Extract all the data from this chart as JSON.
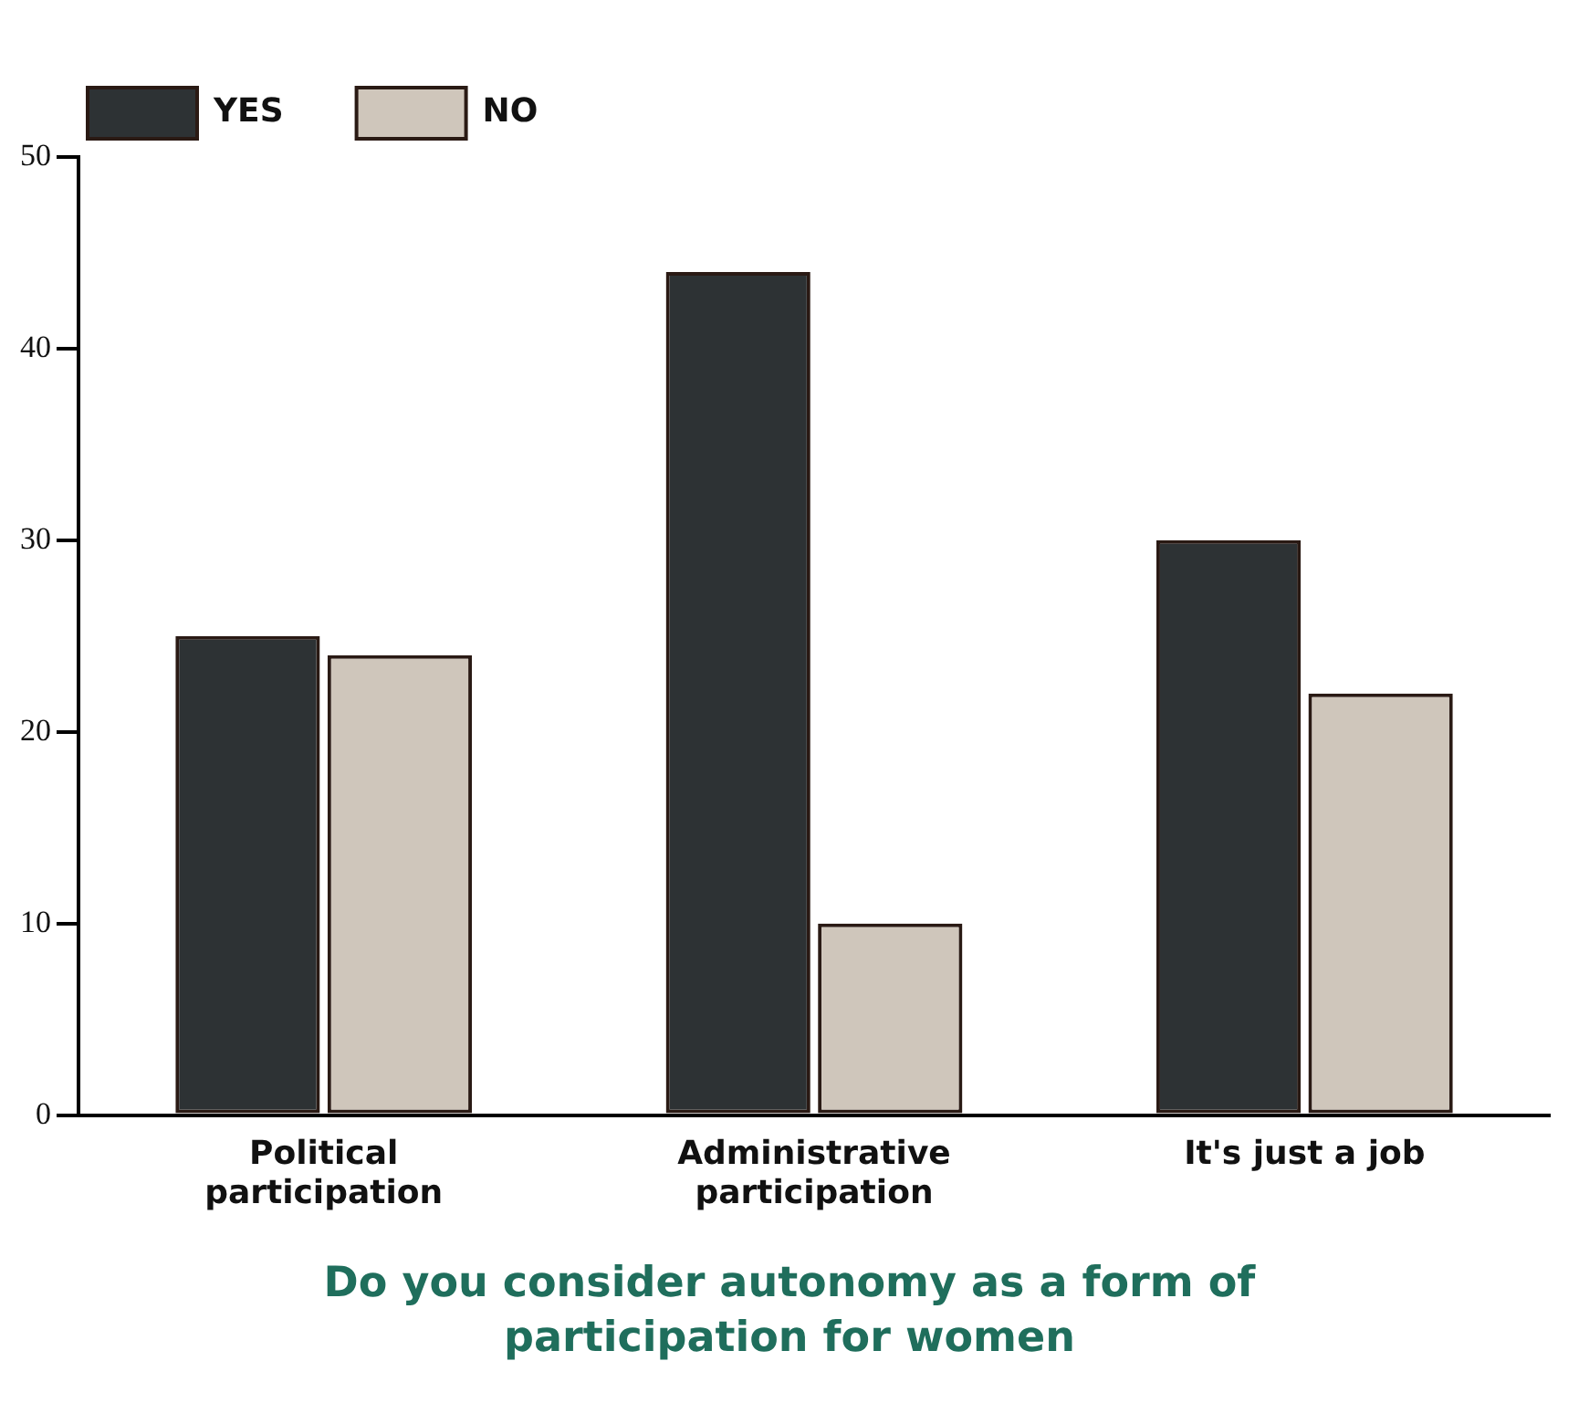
{
  "chart_data": {
    "type": "bar",
    "title": "Do you consider autonomy as a form of participation for women",
    "categories": [
      "Political participation",
      "Administrative participation",
      "It's just a job"
    ],
    "series": [
      {
        "name": "YES",
        "color": "#2d3234",
        "values": [
          25,
          44,
          30
        ]
      },
      {
        "name": "NO",
        "color": "#cfc6bb",
        "values": [
          24,
          10,
          22
        ]
      }
    ],
    "ylim": [
      0,
      50
    ],
    "yticks": [
      0,
      10,
      20,
      30,
      40,
      50
    ],
    "grid": false,
    "legend": "top left"
  }
}
